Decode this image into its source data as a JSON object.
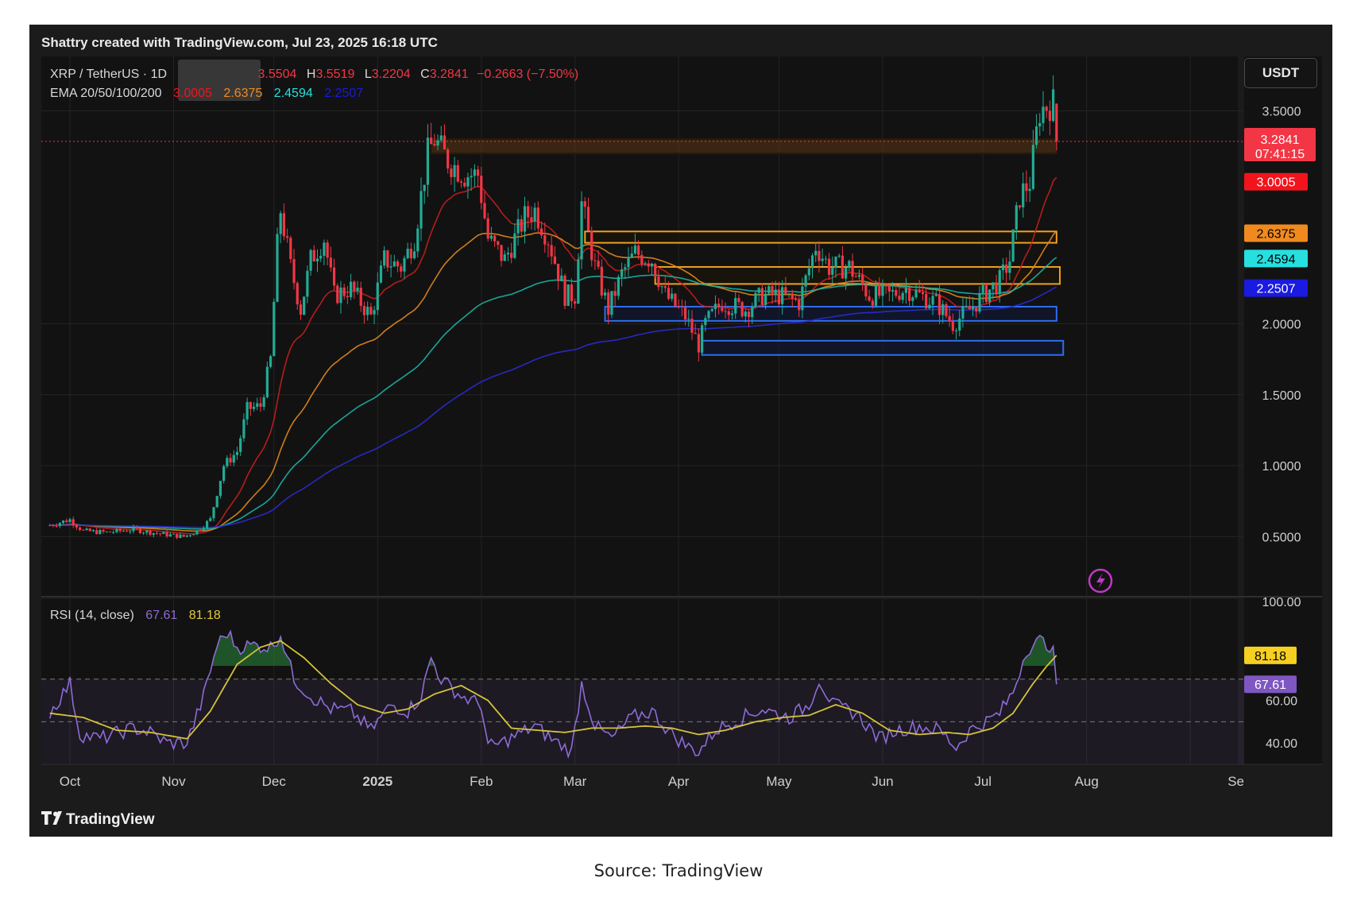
{
  "header": {
    "attribution": "Shattry created with TradingView.com, Jul 23, 2025 16:18 UTC"
  },
  "legend": {
    "symbol": "XRP / TetherUS · 1D",
    "open": "3.5504",
    "high_label": "H",
    "high": "3.5519",
    "low_label": "L",
    "low": "3.2204",
    "close_label": "C",
    "close": "3.2841",
    "change": "−0.2663 (−7.50%)",
    "ema_label": "EMA 20/50/100/200",
    "ema_values": [
      "3.0005",
      "2.6375",
      "2.4594",
      "2.2507"
    ]
  },
  "currency_button": "USDT",
  "rsi_legend": {
    "label": "RSI (14, close)",
    "rsi": "67.61",
    "ma": "81.18"
  },
  "footer": {
    "brand": "TradingView"
  },
  "caption": "Source: TradingView",
  "colors": {
    "background": "#121212",
    "frame": "#1b1b1b",
    "up": "#22ab94",
    "down": "#f23645",
    "ema20": "#c81e1e",
    "ema50": "#e68a1e",
    "ema100": "#1cb5a8",
    "ema200": "#2b2bd6",
    "rsi": "#8e6bd6",
    "rsi_ma": "#d6c23a",
    "zone_orange": "#f0a020",
    "zone_blue": "#2e6df0"
  },
  "chart_data": [
    {
      "type": "candlestick",
      "title": "XRP / TetherUS · 1D",
      "x_ticks": [
        "Oct",
        "Nov",
        "Dec",
        "2025",
        "Feb",
        "Mar",
        "Apr",
        "May",
        "Jun",
        "Jul",
        "Aug",
        "Se"
      ],
      "y_ticks": [
        "3.5000",
        "2.0000",
        "1.5000",
        "1.0000",
        "0.5000"
      ],
      "ylim": [
        0.2,
        3.9
      ],
      "last_price": "3.2841",
      "countdown": "07:41:15",
      "ema_labels": [
        {
          "name": "EMA 20",
          "value": "3.0005",
          "color": "#f2141c",
          "text": "#ffffff"
        },
        {
          "name": "EMA 50",
          "value": "2.6375",
          "color": "#f08a1e",
          "text": "#000000"
        },
        {
          "name": "EMA 100",
          "value": "2.4594",
          "color": "#26e0e0",
          "text": "#000000"
        },
        {
          "name": "EMA 200",
          "value": "2.2507",
          "color": "#1a1ae0",
          "text": "#ffffff"
        }
      ],
      "keypoints": [
        [
          "2024-09-25",
          0.58
        ],
        [
          "2024-10-01",
          0.62
        ],
        [
          "2024-10-05",
          0.54
        ],
        [
          "2024-10-12",
          0.53
        ],
        [
          "2024-10-20",
          0.55
        ],
        [
          "2024-10-28",
          0.52
        ],
        [
          "2024-11-04",
          0.5
        ],
        [
          "2024-11-08",
          0.54
        ],
        [
          "2024-11-12",
          0.62
        ],
        [
          "2024-11-16",
          1.0
        ],
        [
          "2024-11-20",
          1.1
        ],
        [
          "2024-11-23",
          1.4
        ],
        [
          "2024-11-27",
          1.42
        ],
        [
          "2024-11-30",
          1.75
        ],
        [
          "2024-12-02",
          2.55
        ],
        [
          "2024-12-03",
          2.8
        ],
        [
          "2024-12-06",
          2.4
        ],
        [
          "2024-12-09",
          2.1
        ],
        [
          "2024-12-12",
          2.45
        ],
        [
          "2024-12-16",
          2.6
        ],
        [
          "2024-12-19",
          2.2
        ],
        [
          "2024-12-24",
          2.25
        ],
        [
          "2024-12-30",
          2.05
        ],
        [
          "2025-01-03",
          2.45
        ],
        [
          "2025-01-08",
          2.4
        ],
        [
          "2025-01-12",
          2.6
        ],
        [
          "2025-01-16",
          3.2
        ],
        [
          "2025-01-18",
          3.3
        ],
        [
          "2025-01-22",
          3.15
        ],
        [
          "2025-01-27",
          3.05
        ],
        [
          "2025-01-31",
          3.05
        ],
        [
          "2025-02-03",
          2.6
        ],
        [
          "2025-02-08",
          2.45
        ],
        [
          "2025-02-14",
          2.75
        ],
        [
          "2025-02-17",
          2.8
        ],
        [
          "2025-02-21",
          2.6
        ],
        [
          "2025-02-26",
          2.2
        ],
        [
          "2025-03-01",
          2.2
        ],
        [
          "2025-03-03",
          2.85
        ],
        [
          "2025-03-07",
          2.4
        ],
        [
          "2025-03-11",
          2.1
        ],
        [
          "2025-03-15",
          2.35
        ],
        [
          "2025-03-19",
          2.5
        ],
        [
          "2025-03-24",
          2.45
        ],
        [
          "2025-03-28",
          2.2
        ],
        [
          "2025-04-03",
          2.05
        ],
        [
          "2025-04-07",
          1.85
        ],
        [
          "2025-04-09",
          2.0
        ],
        [
          "2025-04-14",
          2.15
        ],
        [
          "2025-04-21",
          2.1
        ],
        [
          "2025-04-26",
          2.2
        ],
        [
          "2025-05-01",
          2.2
        ],
        [
          "2025-05-07",
          2.15
        ],
        [
          "2025-05-12",
          2.55
        ],
        [
          "2025-05-16",
          2.4
        ],
        [
          "2025-05-22",
          2.4
        ],
        [
          "2025-05-28",
          2.2
        ],
        [
          "2025-06-03",
          2.2
        ],
        [
          "2025-06-08",
          2.25
        ],
        [
          "2025-06-12",
          2.2
        ],
        [
          "2025-06-17",
          2.15
        ],
        [
          "2025-06-22",
          2.0
        ],
        [
          "2025-06-27",
          2.1
        ],
        [
          "2025-07-01",
          2.2
        ],
        [
          "2025-07-06",
          2.3
        ],
        [
          "2025-07-09",
          2.45
        ],
        [
          "2025-07-12",
          2.9
        ],
        [
          "2025-07-15",
          3.0
        ],
        [
          "2025-07-18",
          3.5
        ],
        [
          "2025-07-21",
          3.55
        ],
        [
          "2025-07-22",
          3.55
        ],
        [
          "2025-07-23",
          3.28
        ]
      ],
      "zones": [
        {
          "from": "2025-01-17",
          "to": "2025-07-23",
          "low": 3.2,
          "high": 3.3,
          "color": "orange"
        },
        {
          "from": "2025-03-04",
          "to": "2025-07-23",
          "low": 2.57,
          "high": 2.65,
          "color": "orange"
        },
        {
          "from": "2025-03-25",
          "to": "2025-07-24",
          "low": 2.28,
          "high": 2.4,
          "color": "orange"
        },
        {
          "from": "2025-03-10",
          "to": "2025-07-23",
          "low": 2.02,
          "high": 2.12,
          "color": "blue"
        },
        {
          "from": "2025-04-08",
          "to": "2025-07-25",
          "low": 1.78,
          "high": 1.88,
          "color": "blue"
        }
      ]
    },
    {
      "type": "line",
      "title": "RSI (14, close)",
      "y_ticks": [
        "100.00",
        "60.00",
        "40.00"
      ],
      "ylim": [
        30,
        100
      ],
      "bands": [
        70,
        50,
        30
      ],
      "series": [
        {
          "name": "RSI",
          "last": "67.61",
          "color": "#8e6bd6",
          "keypoints": [
            [
              "2024-09-25",
              54
            ],
            [
              "2024-10-01",
              68
            ],
            [
              "2024-10-04",
              44
            ],
            [
              "2024-10-10",
              42
            ],
            [
              "2024-10-20",
              47
            ],
            [
              "2024-10-25",
              45
            ],
            [
              "2024-10-30",
              40
            ],
            [
              "2024-11-05",
              40
            ],
            [
              "2024-11-10",
              62
            ],
            [
              "2024-11-14",
              86
            ],
            [
              "2024-11-17",
              92
            ],
            [
              "2024-11-20",
              85
            ],
            [
              "2024-11-25",
              86
            ],
            [
              "2024-11-30",
              85
            ],
            [
              "2024-12-03",
              91
            ],
            [
              "2024-12-07",
              70
            ],
            [
              "2024-12-12",
              62
            ],
            [
              "2024-12-18",
              56
            ],
            [
              "2024-12-24",
              55
            ],
            [
              "2024-12-30",
              46
            ],
            [
              "2025-01-05",
              58
            ],
            [
              "2025-01-10",
              55
            ],
            [
              "2025-01-14",
              62
            ],
            [
              "2025-01-17",
              80
            ],
            [
              "2025-01-20",
              70
            ],
            [
              "2025-01-26",
              62
            ],
            [
              "2025-02-01",
              58
            ],
            [
              "2025-02-03",
              38
            ],
            [
              "2025-02-07",
              40
            ],
            [
              "2025-02-12",
              44
            ],
            [
              "2025-02-17",
              48
            ],
            [
              "2025-02-22",
              42
            ],
            [
              "2025-02-28",
              36
            ],
            [
              "2025-03-03",
              68
            ],
            [
              "2025-03-07",
              48
            ],
            [
              "2025-03-12",
              42
            ],
            [
              "2025-03-18",
              52
            ],
            [
              "2025-03-24",
              55
            ],
            [
              "2025-03-30",
              44
            ],
            [
              "2025-04-04",
              38
            ],
            [
              "2025-04-07",
              36
            ],
            [
              "2025-04-12",
              46
            ],
            [
              "2025-04-20",
              52
            ],
            [
              "2025-04-26",
              56
            ],
            [
              "2025-05-04",
              52
            ],
            [
              "2025-05-10",
              58
            ],
            [
              "2025-05-13",
              70
            ],
            [
              "2025-05-17",
              58
            ],
            [
              "2025-05-24",
              54
            ],
            [
              "2025-05-31",
              42
            ],
            [
              "2025-06-05",
              46
            ],
            [
              "2025-06-12",
              48
            ],
            [
              "2025-06-18",
              46
            ],
            [
              "2025-06-23",
              38
            ],
            [
              "2025-06-27",
              46
            ],
            [
              "2025-07-02",
              50
            ],
            [
              "2025-07-06",
              54
            ],
            [
              "2025-07-10",
              64
            ],
            [
              "2025-07-14",
              84
            ],
            [
              "2025-07-18",
              88
            ],
            [
              "2025-07-21",
              86
            ],
            [
              "2025-07-22",
              82
            ],
            [
              "2025-07-23",
              67.61
            ]
          ]
        },
        {
          "name": "RSI MA",
          "last": "81.18",
          "color": "#d6c23a",
          "keypoints": [
            [
              "2024-09-25",
              54
            ],
            [
              "2024-10-05",
              52
            ],
            [
              "2024-10-15",
              46
            ],
            [
              "2024-10-25",
              45
            ],
            [
              "2024-11-05",
              42
            ],
            [
              "2024-11-12",
              55
            ],
            [
              "2024-11-20",
              77
            ],
            [
              "2024-11-27",
              85
            ],
            [
              "2024-12-03",
              88
            ],
            [
              "2024-12-10",
              80
            ],
            [
              "2024-12-18",
              68
            ],
            [
              "2024-12-26",
              58
            ],
            [
              "2025-01-03",
              54
            ],
            [
              "2025-01-10",
              56
            ],
            [
              "2025-01-18",
              63
            ],
            [
              "2025-01-26",
              67
            ],
            [
              "2025-02-03",
              60
            ],
            [
              "2025-02-10",
              47
            ],
            [
              "2025-02-18",
              46
            ],
            [
              "2025-02-26",
              45
            ],
            [
              "2025-03-06",
              47
            ],
            [
              "2025-03-14",
              47
            ],
            [
              "2025-03-22",
              48
            ],
            [
              "2025-03-30",
              47
            ],
            [
              "2025-04-07",
              44
            ],
            [
              "2025-04-15",
              46
            ],
            [
              "2025-04-24",
              50
            ],
            [
              "2025-05-02",
              52
            ],
            [
              "2025-05-10",
              53
            ],
            [
              "2025-05-18",
              58
            ],
            [
              "2025-05-26",
              54
            ],
            [
              "2025-06-03",
              46
            ],
            [
              "2025-06-12",
              44
            ],
            [
              "2025-06-20",
              45
            ],
            [
              "2025-06-27",
              44
            ],
            [
              "2025-07-04",
              47
            ],
            [
              "2025-07-10",
              54
            ],
            [
              "2025-07-16",
              68
            ],
            [
              "2025-07-20",
              76
            ],
            [
              "2025-07-23",
              81.18
            ]
          ]
        }
      ]
    }
  ]
}
